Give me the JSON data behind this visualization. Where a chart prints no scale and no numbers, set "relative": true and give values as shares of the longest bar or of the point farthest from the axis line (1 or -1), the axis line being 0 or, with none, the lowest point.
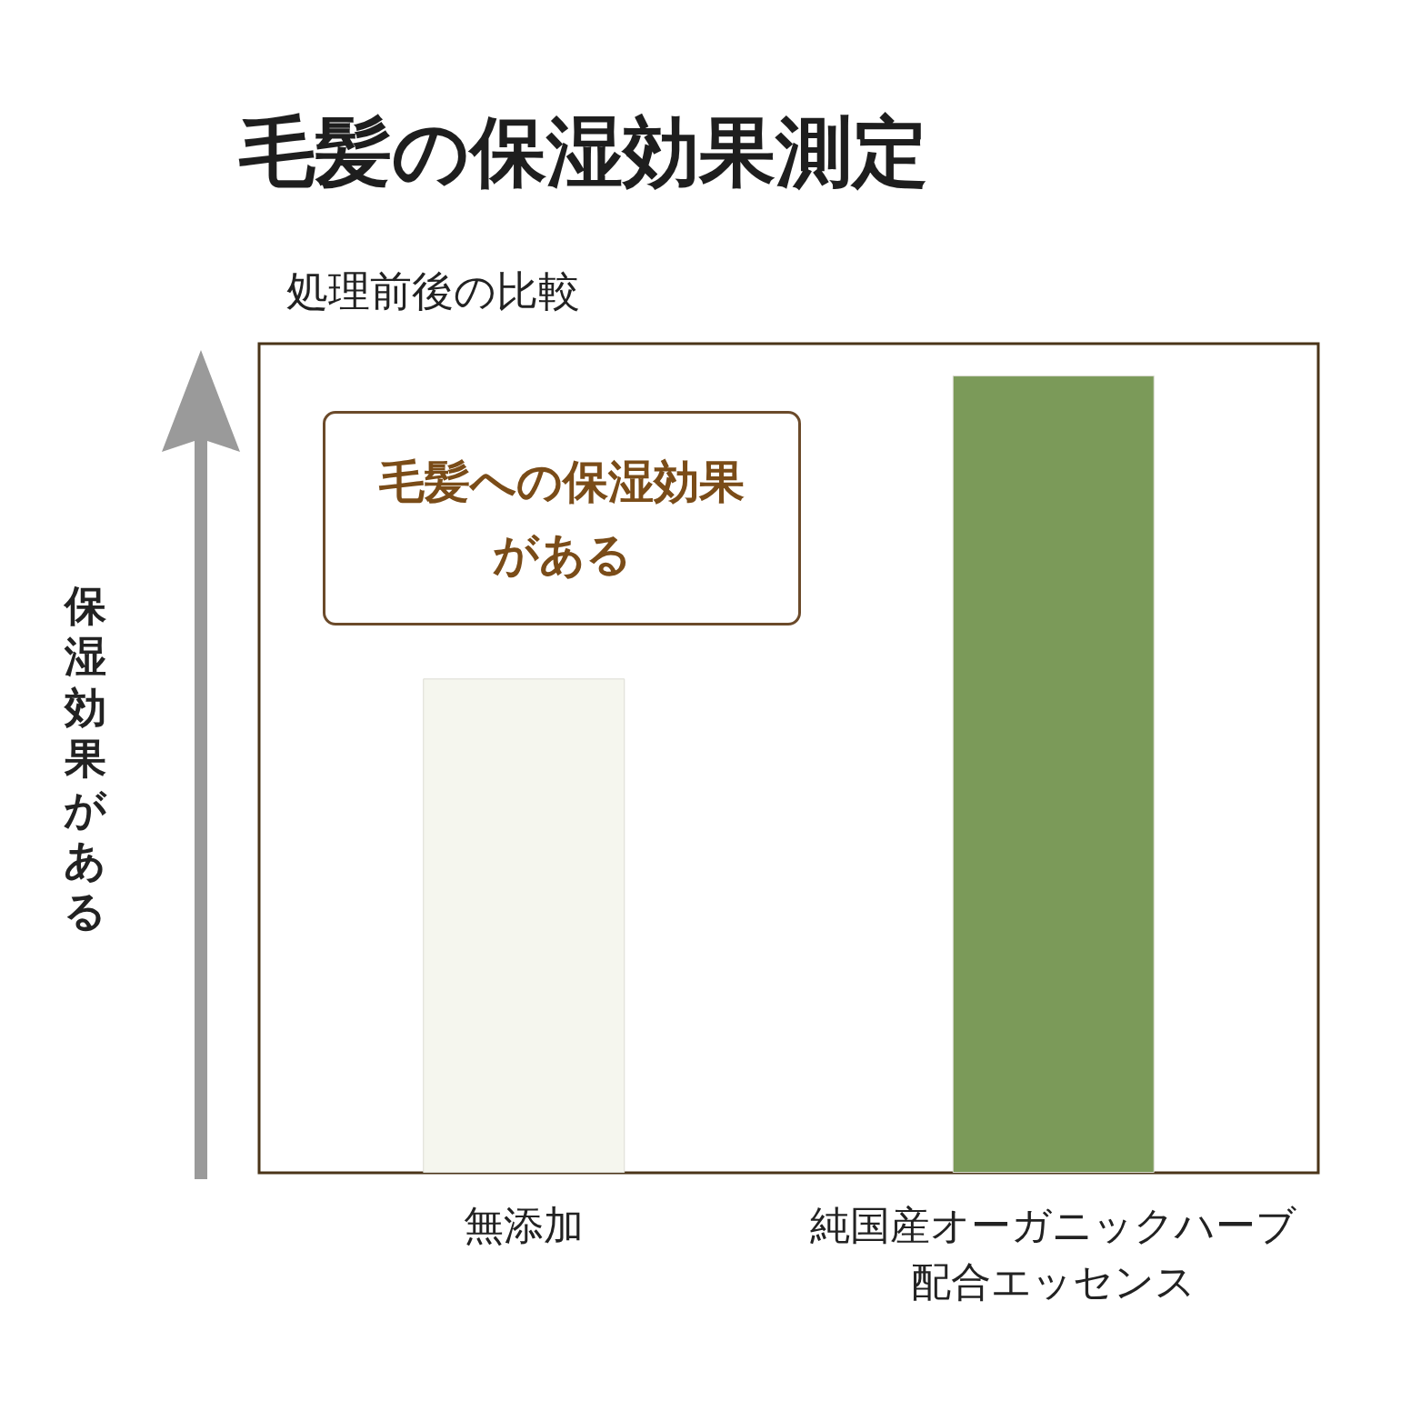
{
  "chart_data": {
    "type": "bar",
    "title": "毛髪の保湿効果測定",
    "subtitle": "処理前後の比較",
    "ylabel": "保湿効果がある",
    "categories": [
      "無添加",
      "純国産オーガニックハーブ配合エッセンス"
    ],
    "values": [
      0.62,
      1
    ],
    "colors": [
      "#f5f6ee",
      "#7b9a59"
    ],
    "relative": true,
    "grid": false,
    "annotations": [
      "毛髪への保湿効果がある"
    ]
  }
}
